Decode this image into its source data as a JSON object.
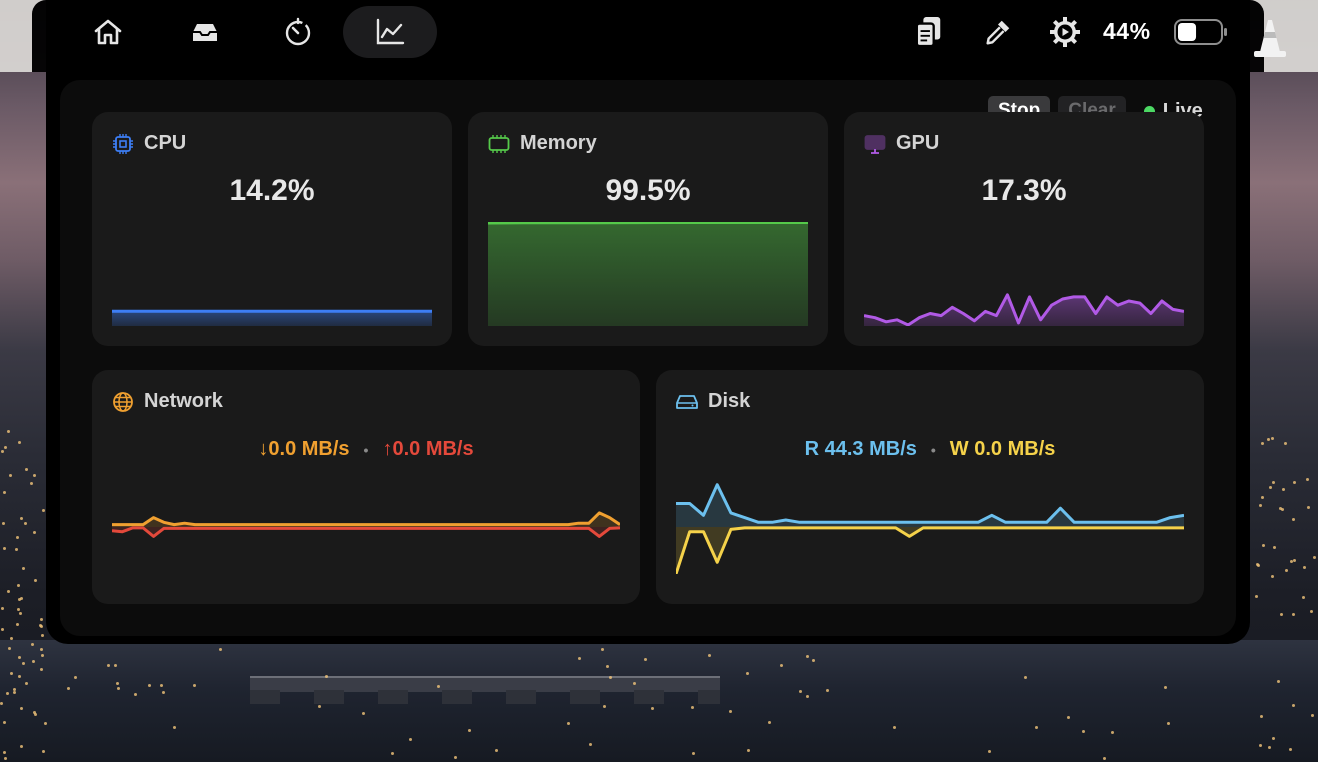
{
  "topbar": {
    "nav": [
      {
        "icon": "home-icon",
        "active": false
      },
      {
        "icon": "inbox-icon",
        "active": false
      },
      {
        "icon": "timer-icon",
        "active": false
      },
      {
        "icon": "chart-icon",
        "active": true
      }
    ],
    "right_icons": [
      "clipboard-icon",
      "eyedropper-icon",
      "settings-icon"
    ],
    "battery_percent": "44%",
    "battery_level": 0.44
  },
  "controls": {
    "stop_label": "Stop",
    "clear_label": "Clear",
    "live_label": "Live"
  },
  "colors": {
    "cpu": "#3d7ef5",
    "memory": "#55c94a",
    "gpu": "#b15ae6",
    "network_down": "#f0a030",
    "network_up": "#e4493b",
    "disk_read": "#6cc0ee",
    "disk_write": "#f5d24a"
  },
  "cpu": {
    "title": "CPU",
    "value": "14.2%"
  },
  "memory": {
    "title": "Memory",
    "value": "99.5%"
  },
  "gpu": {
    "title": "GPU",
    "value": "17.3%"
  },
  "network": {
    "title": "Network",
    "down_label": "↓0.0 MB/s",
    "up_label": "↑0.0 MB/s",
    "separator": "•"
  },
  "disk": {
    "title": "Disk",
    "read_label": "R 44.3 MB/s",
    "write_label": "W 0.0 MB/s",
    "separator": "•"
  },
  "chart_data": [
    {
      "type": "area",
      "name": "CPU",
      "ylim": [
        0,
        100
      ],
      "values": [
        14.2,
        14.2,
        14.2,
        14.2,
        14.2,
        14.2,
        14.2,
        14.2,
        14.2,
        14.2
      ]
    },
    {
      "type": "area",
      "name": "Memory",
      "ylim": [
        0,
        100
      ],
      "values": [
        99.0,
        99.2,
        99.3,
        99.3,
        99.4,
        99.5,
        99.5,
        99.5,
        99.5,
        99.5
      ]
    },
    {
      "type": "area",
      "name": "GPU",
      "ylim": [
        0,
        100
      ],
      "values": [
        10,
        8,
        4,
        6,
        1,
        8,
        12,
        10,
        18,
        12,
        5,
        14,
        10,
        30,
        3,
        28,
        6,
        20,
        26,
        28,
        28,
        12,
        28,
        20,
        24,
        22,
        12,
        24,
        16,
        14
      ]
    },
    {
      "type": "area",
      "name": "Network",
      "ylim": [
        -1,
        1
      ],
      "series": [
        {
          "values": [
            0.05,
            0.05,
            0.05,
            0.05,
            0.2,
            0.1,
            0.05,
            0.08,
            0.05,
            0.05,
            0.05,
            0.05,
            0.05,
            0.05,
            0.05,
            0.05,
            0.05,
            0.05,
            0.05,
            0.05,
            0.05,
            0.05,
            0.05,
            0.05,
            0.05,
            0.05,
            0.05,
            0.05,
            0.05,
            0.05,
            0.05,
            0.05,
            0.05,
            0.05,
            0.05,
            0.05,
            0.05,
            0.05,
            0.05,
            0.05,
            0.05,
            0.05,
            0.05,
            0.05,
            0.05,
            0.08,
            0.08,
            0.3,
            0.2,
            0.05
          ]
        },
        {
          "values": [
            -0.08,
            -0.1,
            -0.02,
            -0.02,
            -0.2,
            -0.03,
            -0.03,
            -0.03,
            -0.03,
            -0.03,
            -0.03,
            -0.03,
            -0.03,
            -0.03,
            -0.03,
            -0.03,
            -0.03,
            -0.03,
            -0.03,
            -0.03,
            -0.03,
            -0.03,
            -0.03,
            -0.03,
            -0.03,
            -0.03,
            -0.03,
            -0.03,
            -0.03,
            -0.03,
            -0.03,
            -0.03,
            -0.03,
            -0.03,
            -0.03,
            -0.03,
            -0.03,
            -0.03,
            -0.03,
            -0.03,
            -0.03,
            -0.03,
            -0.03,
            -0.03,
            -0.03,
            -0.03,
            -0.03,
            -0.2,
            -0.03,
            -0.02
          ]
        }
      ]
    },
    {
      "type": "area",
      "name": "Disk",
      "ylim": [
        -1,
        1
      ],
      "series": [
        {
          "values": [
            0.5,
            0.5,
            0.25,
            0.9,
            0.3,
            0.2,
            0.1,
            0.1,
            0.15,
            0.1,
            0.1,
            0.1,
            0.1,
            0.1,
            0.1,
            0.1,
            0.1,
            0.1,
            0.1,
            0.1,
            0.1,
            0.1,
            0.1,
            0.25,
            0.1,
            0.1,
            0.1,
            0.1,
            0.4,
            0.1,
            0.1,
            0.1,
            0.1,
            0.1,
            0.1,
            0.1,
            0.2,
            0.25
          ]
        },
        {
          "values": [
            -1.0,
            -0.1,
            -0.1,
            -0.75,
            -0.05,
            -0.02,
            -0.02,
            -0.02,
            -0.02,
            -0.02,
            -0.02,
            -0.02,
            -0.02,
            -0.02,
            -0.02,
            -0.02,
            -0.02,
            -0.2,
            -0.02,
            -0.02,
            -0.02,
            -0.02,
            -0.02,
            -0.02,
            -0.02,
            -0.02,
            -0.02,
            -0.02,
            -0.02,
            -0.02,
            -0.02,
            -0.02,
            -0.02,
            -0.02,
            -0.02,
            -0.02,
            -0.02,
            -0.02
          ]
        }
      ]
    }
  ]
}
